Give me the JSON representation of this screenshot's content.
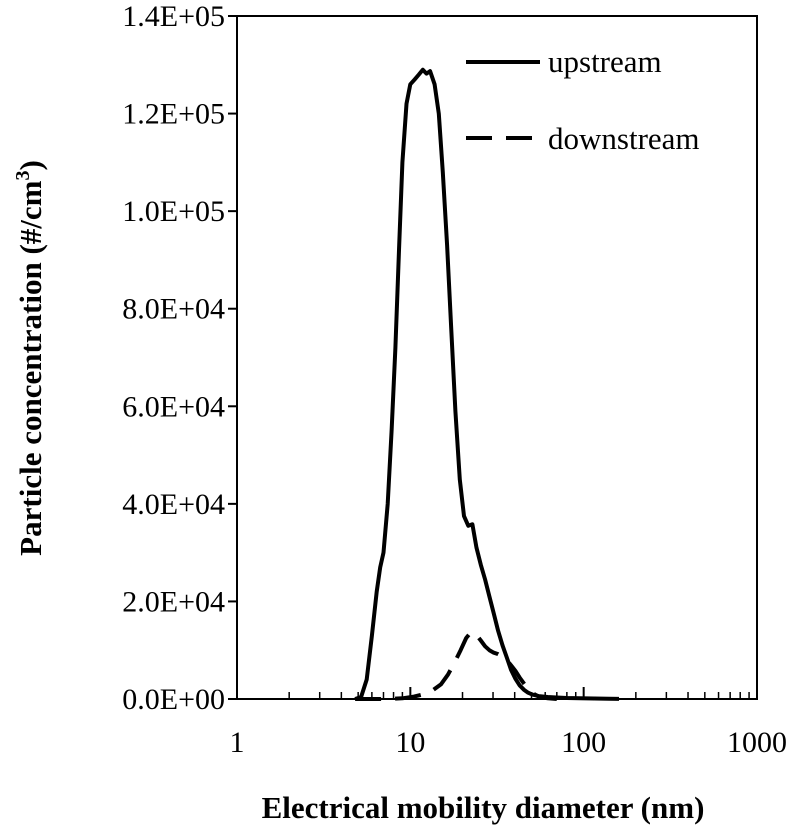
{
  "chart_data": {
    "type": "line",
    "title": "",
    "xlabel": "Electrical mobility diameter (nm)",
    "ylabel_prefix": "Particle concentration (#/cm",
    "ylabel_sup": "3",
    "ylabel_suffix": ")",
    "x_scale": "log",
    "xlim": [
      1,
      1000
    ],
    "ylim": [
      0,
      140000
    ],
    "x_ticks": [
      1,
      10,
      100,
      1000
    ],
    "x_tick_labels": [
      "1",
      "10",
      "100",
      "1000"
    ],
    "y_ticks": [
      0,
      20000,
      40000,
      60000,
      80000,
      100000,
      120000,
      140000
    ],
    "y_tick_labels": [
      "0.0E+00",
      "2.0E+04",
      "4.0E+04",
      "6.0E+04",
      "8.0E+04",
      "1.0E+05",
      "1.2E+05",
      "1.4E+05"
    ],
    "grid": false,
    "legend_position": "top-right",
    "series": [
      {
        "name": "upstream",
        "style": "solid",
        "color": "#000000",
        "x": [
          4.8,
          5.2,
          5.6,
          6.0,
          6.4,
          6.7,
          7.0,
          7.4,
          7.8,
          8.2,
          8.6,
          9.0,
          9.5,
          10.0,
          10.6,
          11.2,
          11.8,
          12.4,
          13.0,
          13.8,
          14.6,
          15.4,
          16.3,
          17.2,
          18.2,
          19.3,
          20.4,
          21.6,
          22.8,
          24.1,
          25.5,
          27.0,
          28.6,
          30.3,
          32.1,
          34.0,
          36.0,
          38.1,
          40.3,
          42.7,
          45.2,
          47.8,
          50.6,
          55.0,
          62.0,
          70.0,
          80.0,
          95.0,
          115.0,
          140.0,
          160.0
        ],
        "y": [
          0,
          400,
          4000,
          13000,
          22000,
          27000,
          30000,
          40000,
          55000,
          72000,
          92000,
          110000,
          122000,
          126000,
          127000,
          128000,
          129000,
          128200,
          128700,
          126000,
          120000,
          108000,
          93000,
          76000,
          59000,
          45000,
          37500,
          35500,
          35800,
          31000,
          27500,
          24500,
          21000,
          17500,
          14000,
          11000,
          8500,
          6000,
          4200,
          2800,
          1900,
          1300,
          900,
          600,
          400,
          300,
          200,
          150,
          100,
          50,
          20
        ]
      },
      {
        "name": "downstream",
        "style": "dashed",
        "color": "#000000",
        "x": [
          4.8,
          6.0,
          7.5,
          9.0,
          10.5,
          12.0,
          13.5,
          15.0,
          16.5,
          18.0,
          19.5,
          21.0,
          22.5,
          24.0,
          25.5,
          27.0,
          28.6,
          30.3,
          32.1,
          34.0,
          36.0,
          38.1,
          40.3,
          42.7,
          45.2,
          47.8,
          50.6,
          55.0,
          62.0,
          70.0
        ],
        "y": [
          0,
          0,
          0,
          150,
          500,
          1000,
          1800,
          3000,
          5000,
          7500,
          10000,
          12500,
          13800,
          13200,
          12000,
          10800,
          10000,
          9500,
          9200,
          8700,
          8000,
          6900,
          5800,
          4400,
          3200,
          2000,
          1200,
          500,
          150,
          0
        ]
      }
    ]
  }
}
